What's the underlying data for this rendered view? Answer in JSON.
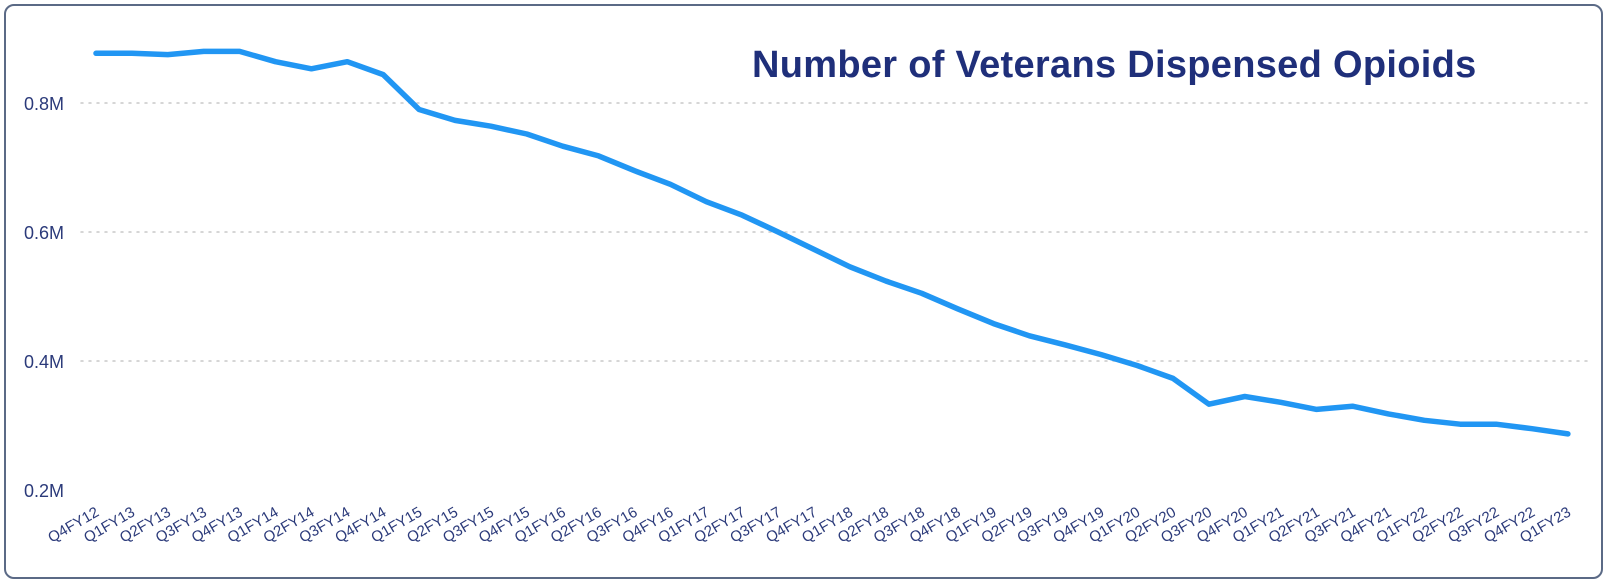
{
  "chart_data": {
    "type": "line",
    "title": "Number of Veterans Dispensed Opioids",
    "xlabel": "",
    "ylabel": "",
    "y_unit": "M",
    "ylim": [
      0.2,
      0.9
    ],
    "y_ticks": [
      0.2,
      0.4,
      0.6,
      0.8
    ],
    "y_tick_labels": [
      "0.2M",
      "0.4M",
      "0.6M",
      "0.8M"
    ],
    "grid": "horizontal dotted",
    "line_color": "#2196f3",
    "categories": [
      "Q4FY12",
      "Q1FY13",
      "Q2FY13",
      "Q3FY13",
      "Q4FY13",
      "Q1FY14",
      "Q2FY14",
      "Q3FY14",
      "Q4FY14",
      "Q1FY15",
      "Q2FY15",
      "Q3FY15",
      "Q4FY15",
      "Q1FY16",
      "Q2FY16",
      "Q3FY16",
      "Q4FY16",
      "Q1FY17",
      "Q2FY17",
      "Q3FY17",
      "Q4FY17",
      "Q1FY18",
      "Q2FY18",
      "Q3FY18",
      "Q4FY18",
      "Q1FY19",
      "Q2FY19",
      "Q3FY19",
      "Q4FY19",
      "Q1FY20",
      "Q2FY20",
      "Q3FY20",
      "Q4FY20",
      "Q1FY21",
      "Q2FY21",
      "Q3FY21",
      "Q4FY21",
      "Q1FY22",
      "Q2FY22",
      "Q3FY22",
      "Q4FY22",
      "Q1FY23"
    ],
    "values": [
      0.877,
      0.877,
      0.875,
      0.88,
      0.88,
      0.864,
      0.853,
      0.864,
      0.844,
      0.79,
      0.773,
      0.764,
      0.752,
      0.733,
      0.718,
      0.695,
      0.674,
      0.647,
      0.626,
      0.6,
      0.573,
      0.546,
      0.524,
      0.505,
      0.481,
      0.458,
      0.439,
      0.425,
      0.41,
      0.393,
      0.373,
      0.333,
      0.345,
      0.336,
      0.325,
      0.33,
      0.318,
      0.308,
      0.302,
      0.302,
      0.295,
      0.287
    ]
  },
  "colors": {
    "title": "#1f2f7a",
    "tick_text": "#2b3a7a",
    "grid": "#c9c9c9",
    "frame": "#5b6a86"
  }
}
